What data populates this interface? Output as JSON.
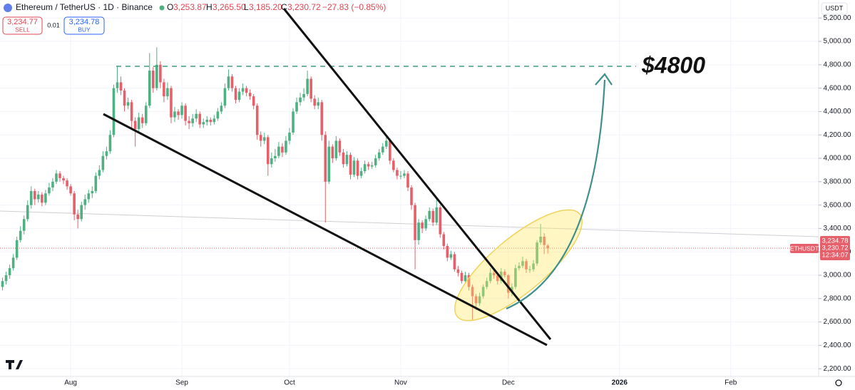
{
  "header": {
    "title": "Ethereum / TetherUS · 1D · Binance",
    "o_label": "O",
    "o": "3,253.87",
    "h_label": "H",
    "h": "3,265.50",
    "l_label": "L",
    "l": "3,185.20",
    "c_label": "C",
    "c": "3,230.72",
    "change": "−27.83 (−0.85%)"
  },
  "trade": {
    "sell_price": "3,234.77",
    "sell": "SELL",
    "spread": "0.01",
    "buy_price": "3,234.78",
    "buy": "BUY"
  },
  "price_labels": {
    "currency": "USDT",
    "ask": "3,234.78",
    "last": "3,230.72",
    "countdown": "12:34:07",
    "symbol": "ETHUSDT"
  },
  "chart_data": {
    "type": "candlestick",
    "annotation": "$4800",
    "up_color": "#4fb082",
    "down_color": "#e5606a",
    "grid": true,
    "xlim": [
      -19.7,
      208.5
    ],
    "ylim": [
      2134,
      5354
    ],
    "xticks": [
      {
        "value": 0,
        "label": "Aug"
      },
      {
        "value": 31,
        "label": "Sep"
      },
      {
        "value": 61,
        "label": "Oct"
      },
      {
        "value": 92,
        "label": "Nov"
      },
      {
        "value": 122,
        "label": "Dec"
      },
      {
        "value": 153,
        "label": "2026"
      },
      {
        "value": 184,
        "label": "Feb"
      }
    ],
    "yticks": [
      {
        "value": 2200,
        "label": "2,200.00"
      },
      {
        "value": 2400,
        "label": "2,400.00"
      },
      {
        "value": 2600,
        "label": "2,600.00"
      },
      {
        "value": 2800,
        "label": "2,800.00"
      },
      {
        "value": 3000,
        "label": "3,000.00"
      },
      {
        "value": 3200,
        "label": "3,200.00"
      },
      {
        "value": 3400,
        "label": "3,400.00"
      },
      {
        "value": 3600,
        "label": "3,600.00"
      },
      {
        "value": 3800,
        "label": "3,800.00"
      },
      {
        "value": 4000,
        "label": "4,000.00"
      },
      {
        "value": 4200,
        "label": "4,200.00"
      },
      {
        "value": 4400,
        "label": "4,400.00"
      },
      {
        "value": 4600,
        "label": "4,600.00"
      },
      {
        "value": 4800,
        "label": "4,800.00"
      },
      {
        "value": 5000,
        "label": "5,000.00"
      },
      {
        "value": 5200,
        "label": "5,200.00"
      }
    ],
    "x": [
      -19,
      -18,
      -17,
      -16,
      -15,
      -14,
      -13,
      -12,
      -11,
      -10,
      -9,
      -8,
      -7,
      -6,
      -5,
      -4,
      -3,
      -2,
      -1,
      0,
      1,
      2,
      3,
      4,
      5,
      6,
      7,
      8,
      9,
      10,
      11,
      12,
      13,
      14,
      15,
      16,
      17,
      18,
      19,
      20,
      21,
      22,
      23,
      24,
      25,
      26,
      27,
      28,
      29,
      30,
      31,
      32,
      33,
      34,
      35,
      36,
      37,
      38,
      39,
      40,
      41,
      42,
      43,
      44,
      45,
      46,
      47,
      48,
      49,
      50,
      51,
      52,
      53,
      54,
      55,
      56,
      57,
      58,
      59,
      60,
      61,
      62,
      63,
      64,
      65,
      66,
      67,
      68,
      69,
      70,
      71,
      72,
      73,
      74,
      75,
      76,
      77,
      78,
      79,
      80,
      81,
      82,
      83,
      84,
      85,
      86,
      87,
      88,
      89,
      90,
      91,
      92,
      93,
      94,
      95,
      96,
      97,
      98,
      99,
      100,
      101,
      102,
      103,
      104,
      105,
      106,
      107,
      108,
      109,
      110,
      111,
      112,
      113,
      114,
      115,
      116,
      117,
      118,
      119,
      120,
      121,
      122,
      123,
      124,
      125,
      126,
      127,
      128,
      129,
      130,
      131,
      132,
      133
    ],
    "ohlc": [
      [
        2900,
        2980,
        2870,
        2950
      ],
      [
        2950,
        3030,
        2920,
        3000
      ],
      [
        3000,
        3090,
        2970,
        3060
      ],
      [
        3060,
        3180,
        3040,
        3150
      ],
      [
        3150,
        3330,
        3130,
        3300
      ],
      [
        3300,
        3420,
        3280,
        3380
      ],
      [
        3380,
        3510,
        3350,
        3480
      ],
      [
        3480,
        3640,
        3460,
        3600
      ],
      [
        3600,
        3760,
        3570,
        3720
      ],
      [
        3720,
        3740,
        3600,
        3650
      ],
      [
        3650,
        3720,
        3620,
        3690
      ],
      [
        3690,
        3710,
        3590,
        3620
      ],
      [
        3620,
        3730,
        3600,
        3700
      ],
      [
        3700,
        3790,
        3680,
        3750
      ],
      [
        3750,
        3830,
        3720,
        3800
      ],
      [
        3800,
        3900,
        3780,
        3870
      ],
      [
        3870,
        3890,
        3800,
        3830
      ],
      [
        3830,
        3850,
        3780,
        3810
      ],
      [
        3810,
        3830,
        3730,
        3760
      ],
      [
        3760,
        3780,
        3680,
        3700
      ],
      [
        3700,
        3720,
        3470,
        3520
      ],
      [
        3520,
        3560,
        3400,
        3480
      ],
      [
        3480,
        3630,
        3460,
        3600
      ],
      [
        3600,
        3690,
        3560,
        3650
      ],
      [
        3650,
        3730,
        3620,
        3700
      ],
      [
        3700,
        3760,
        3660,
        3720
      ],
      [
        3720,
        3880,
        3700,
        3850
      ],
      [
        3850,
        3940,
        3820,
        3900
      ],
      [
        3900,
        4060,
        3880,
        4020
      ],
      [
        4020,
        4100,
        3990,
        4060
      ],
      [
        4060,
        4240,
        4040,
        4200
      ],
      [
        4200,
        4630,
        4180,
        4600
      ],
      [
        4600,
        4790,
        4560,
        4650
      ],
      [
        4650,
        4700,
        4540,
        4580
      ],
      [
        4580,
        4600,
        4400,
        4450
      ],
      [
        4450,
        4520,
        4420,
        4480
      ],
      [
        4480,
        4500,
        4250,
        4320
      ],
      [
        4320,
        4350,
        4100,
        4250
      ],
      [
        4250,
        4390,
        4220,
        4350
      ],
      [
        4350,
        4380,
        4260,
        4300
      ],
      [
        4300,
        4480,
        4280,
        4450
      ],
      [
        4450,
        4900,
        4430,
        4750
      ],
      [
        4750,
        4780,
        4560,
        4600
      ],
      [
        4600,
        4950,
        4580,
        4800
      ],
      [
        4800,
        4830,
        4600,
        4650
      ],
      [
        4650,
        4680,
        4480,
        4530
      ],
      [
        4530,
        4650,
        4500,
        4600
      ],
      [
        4600,
        4620,
        4300,
        4350
      ],
      [
        4350,
        4440,
        4310,
        4400
      ],
      [
        4400,
        4420,
        4330,
        4370
      ],
      [
        4370,
        4480,
        4340,
        4450
      ],
      [
        4450,
        4470,
        4280,
        4320
      ],
      [
        4320,
        4360,
        4250,
        4300
      ],
      [
        4300,
        4380,
        4270,
        4340
      ],
      [
        4340,
        4420,
        4310,
        4380
      ],
      [
        4380,
        4400,
        4260,
        4290
      ],
      [
        4290,
        4340,
        4260,
        4310
      ],
      [
        4310,
        4360,
        4280,
        4330
      ],
      [
        4330,
        4350,
        4280,
        4310
      ],
      [
        4310,
        4370,
        4290,
        4340
      ],
      [
        4340,
        4430,
        4320,
        4400
      ],
      [
        4400,
        4480,
        4380,
        4450
      ],
      [
        4450,
        4640,
        4430,
        4600
      ],
      [
        4600,
        4760,
        4580,
        4700
      ],
      [
        4700,
        4720,
        4570,
        4600
      ],
      [
        4600,
        4620,
        4470,
        4500
      ],
      [
        4500,
        4600,
        4480,
        4570
      ],
      [
        4570,
        4640,
        4540,
        4600
      ],
      [
        4600,
        4620,
        4530,
        4560
      ],
      [
        4560,
        4590,
        4500,
        4530
      ],
      [
        4530,
        4550,
        4420,
        4450
      ],
      [
        4450,
        4470,
        4160,
        4200
      ],
      [
        4200,
        4230,
        4100,
        4150
      ],
      [
        4150,
        4220,
        4120,
        4180
      ],
      [
        4180,
        4200,
        3850,
        3950
      ],
      [
        3950,
        4050,
        3920,
        4000
      ],
      [
        4000,
        4080,
        3970,
        4020
      ],
      [
        4020,
        4140,
        4000,
        4100
      ],
      [
        4100,
        4130,
        4010,
        4050
      ],
      [
        4050,
        4190,
        4030,
        4150
      ],
      [
        4150,
        4260,
        4120,
        4220
      ],
      [
        4220,
        4430,
        4200,
        4400
      ],
      [
        4400,
        4520,
        4380,
        4480
      ],
      [
        4480,
        4560,
        4450,
        4520
      ],
      [
        4520,
        4600,
        4490,
        4550
      ],
      [
        4550,
        4750,
        4530,
        4680
      ],
      [
        4680,
        4700,
        4480,
        4510
      ],
      [
        4510,
        4540,
        4420,
        4450
      ],
      [
        4450,
        4520,
        4420,
        4480
      ],
      [
        4480,
        4500,
        4150,
        4200
      ],
      [
        4200,
        4230,
        3450,
        3800
      ],
      [
        3800,
        4150,
        3780,
        4100
      ],
      [
        4100,
        4120,
        3960,
        4000
      ],
      [
        4000,
        4190,
        3980,
        4150
      ],
      [
        4150,
        4170,
        4020,
        4050
      ],
      [
        4050,
        4080,
        3920,
        3950
      ],
      [
        3950,
        4060,
        3930,
        4030
      ],
      [
        4030,
        4050,
        3820,
        3860
      ],
      [
        3860,
        4010,
        3840,
        3980
      ],
      [
        3980,
        4000,
        3820,
        3850
      ],
      [
        3850,
        3920,
        3830,
        3890
      ],
      [
        3890,
        3980,
        3870,
        3950
      ],
      [
        3950,
        3970,
        3900,
        3930
      ],
      [
        3930,
        3970,
        3910,
        3940
      ],
      [
        3940,
        4030,
        3920,
        4000
      ],
      [
        4000,
        4080,
        3980,
        4050
      ],
      [
        4050,
        4130,
        4030,
        4100
      ],
      [
        4100,
        4200,
        4080,
        4150
      ],
      [
        4150,
        4170,
        3950,
        3980
      ],
      [
        3980,
        4000,
        3880,
        3900
      ],
      [
        3900,
        3920,
        3820,
        3850
      ],
      [
        3850,
        3890,
        3820,
        3850
      ],
      [
        3850,
        3900,
        3830,
        3870
      ],
      [
        3870,
        3890,
        3720,
        3750
      ],
      [
        3750,
        3770,
        3560,
        3600
      ],
      [
        3600,
        3620,
        3050,
        3300
      ],
      [
        3300,
        3480,
        3260,
        3450
      ],
      [
        3450,
        3470,
        3360,
        3400
      ],
      [
        3400,
        3510,
        3380,
        3480
      ],
      [
        3480,
        3580,
        3460,
        3550
      ],
      [
        3550,
        3570,
        3420,
        3450
      ],
      [
        3450,
        3650,
        3430,
        3580
      ],
      [
        3580,
        3600,
        3320,
        3350
      ],
      [
        3350,
        3370,
        3220,
        3250
      ],
      [
        3250,
        3270,
        3120,
        3150
      ],
      [
        3150,
        3210,
        3130,
        3180
      ],
      [
        3180,
        3200,
        3030,
        3050
      ],
      [
        3050,
        3080,
        2990,
        3020
      ],
      [
        3020,
        3040,
        2930,
        2950
      ],
      [
        2950,
        3030,
        2930,
        3000
      ],
      [
        3000,
        3020,
        2870,
        2900
      ],
      [
        2900,
        2920,
        2620,
        2820
      ],
      [
        2820,
        2840,
        2700,
        2760
      ],
      [
        2760,
        2850,
        2740,
        2820
      ],
      [
        2820,
        2920,
        2800,
        2900
      ],
      [
        2900,
        2980,
        2880,
        2950
      ],
      [
        2950,
        3060,
        2930,
        3020
      ],
      [
        3020,
        3040,
        2970,
        3000
      ],
      [
        3000,
        3020,
        2920,
        2950
      ],
      [
        2950,
        3060,
        2930,
        3030
      ],
      [
        3030,
        3050,
        2980,
        3000
      ],
      [
        3000,
        3010,
        2800,
        2850
      ],
      [
        2850,
        2930,
        2820,
        2900
      ],
      [
        2900,
        3090,
        2880,
        3060
      ],
      [
        3060,
        3110,
        3040,
        3080
      ],
      [
        3080,
        3160,
        3060,
        3120
      ],
      [
        3120,
        3140,
        3020,
        3050
      ],
      [
        3050,
        3080,
        3020,
        3050
      ],
      [
        3050,
        3130,
        3030,
        3100
      ],
      [
        3100,
        3300,
        3080,
        3280
      ],
      [
        3280,
        3440,
        3260,
        3330
      ],
      [
        3330,
        3360,
        3180,
        3258.55
      ],
      [
        3253.87,
        3265.5,
        3185.2,
        3230.72
      ]
    ]
  }
}
